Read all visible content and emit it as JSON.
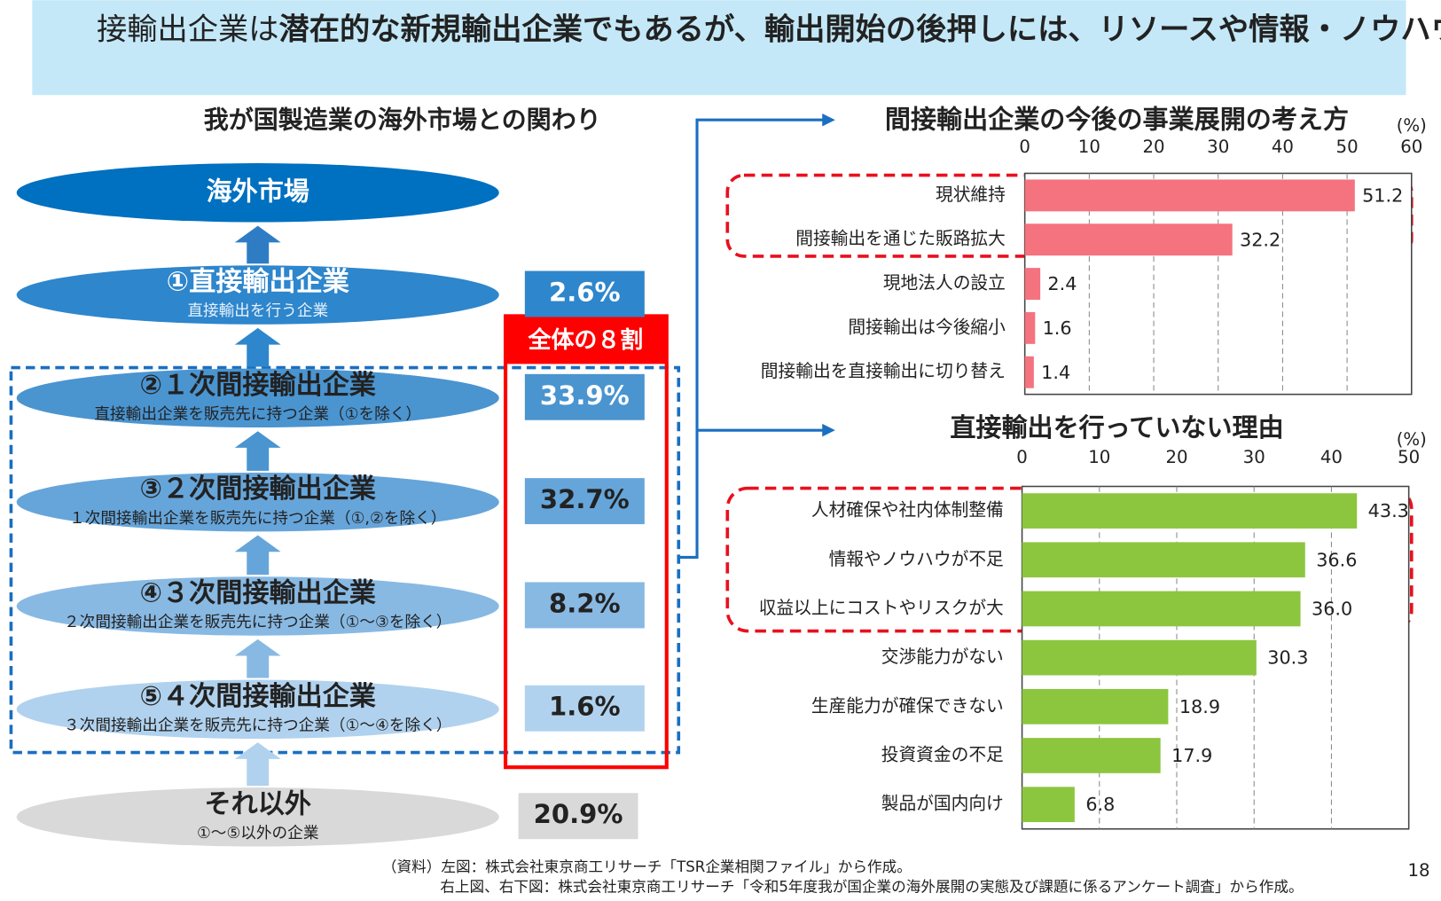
{
  "banner": {
    "normal": "接輸出企業は",
    "bold": "潜在的な新規輸出企業でもあるが、輸出開始の後押しには、リソースや情報・ノウハウ、輸出開始に伴うリスクに対する支援が課題。"
  },
  "left": {
    "title": "我が国製造業の海外市場との関わり",
    "top": "海外市場",
    "badge": "全体の８割",
    "nodes": [
      {
        "label": "①直接輸出企業",
        "sub": "直接輸出を行う企業",
        "share": "2.6%"
      },
      {
        "label": "②１次間接輸出企業",
        "sub": "直接輸出企業を販売先に持つ企業（①を除く）",
        "share": "33.9%"
      },
      {
        "label": "③２次間接輸出企業",
        "sub": "１次間接輸出企業を販売先に持つ企業（①,②を除く）",
        "share": "32.7%"
      },
      {
        "label": "④３次間接輸出企業",
        "sub": "２次間接輸出企業を販売先に持つ企業（①～③を除く）",
        "share": "8.2%"
      },
      {
        "label": "⑤４次間接輸出企業",
        "sub": "３次間接輸出企業を販売先に持つ企業（①～④を除く）",
        "share": "1.6%"
      },
      {
        "label": "それ以外",
        "sub": "①～⑤以外の企業",
        "share": "20.9%"
      }
    ]
  },
  "chart_data": [
    {
      "type": "bar",
      "title": "間接輸出企業の今後の事業展開の考え方",
      "unit": "(%)",
      "categories": [
        "現状維持",
        "間接輸出を通じた販路拡大",
        "現地法人の設立",
        "間接輸出は今後縮小",
        "間接輸出を直接輸出に切り替え"
      ],
      "values": [
        51.2,
        32.2,
        2.4,
        1.6,
        1.4
      ],
      "colors": [
        "#f4737f",
        "#f4737f",
        "#f4737f",
        "#f4737f",
        "#f4737f"
      ],
      "xlim": [
        0,
        60
      ],
      "xticks": [
        0,
        10,
        20,
        30,
        40,
        50,
        60
      ],
      "grid": true
    },
    {
      "type": "bar",
      "title": "直接輸出を行っていない理由",
      "unit": "(%)",
      "categories": [
        "人材確保や社内体制整備",
        "情報やノウハウが不足",
        "収益以上にコストやリスクが大",
        "交渉能力がない",
        "生産能力が確保できない",
        "投資資金の不足",
        "製品が国内向け"
      ],
      "values": [
        43.3,
        36.6,
        36.0,
        30.3,
        18.9,
        17.9,
        6.8
      ],
      "value_labels": [
        "43.3",
        "36.6",
        "36.0",
        "30.3",
        "18.9",
        "17.9",
        "6.8"
      ],
      "colors": [
        "#8cc63f",
        "#8cc63f",
        "#8cc63f",
        "#8cc63f",
        "#8cc63f",
        "#8cc63f",
        "#8cc63f"
      ],
      "xlim": [
        0,
        50
      ],
      "xticks": [
        0,
        10,
        20,
        30,
        40,
        50
      ],
      "grid": true
    }
  ],
  "source": [
    "（資料）左図：株式会社東京商工リサーチ「TSR企業相関ファイル」から作成。",
    "右上図、右下図：株式会社東京商工リサーチ「令和5年度我が国企業の海外展開の実態及び課題に係るアンケート調査」から作成。"
  ],
  "page": "18"
}
